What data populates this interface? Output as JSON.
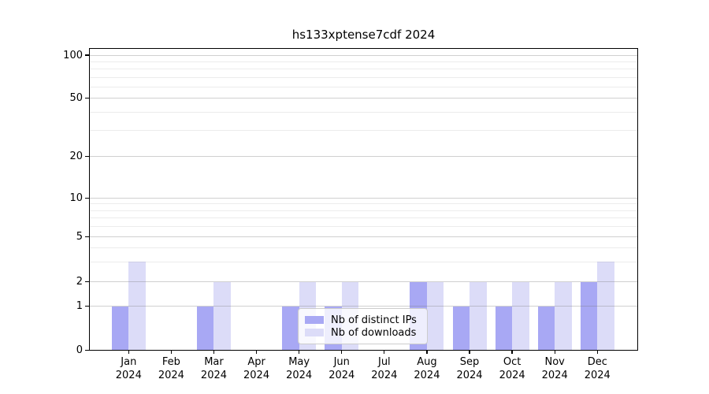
{
  "chart_data": {
    "type": "bar",
    "title": "hs133xptense7cdf 2024",
    "categories": [
      "Jan",
      "Feb",
      "Mar",
      "Apr",
      "May",
      "Jun",
      "Jul",
      "Aug",
      "Sep",
      "Oct",
      "Nov",
      "Dec"
    ],
    "xtick_year": "2024",
    "series": [
      {
        "name": "Nb of distinct IPs",
        "color": "#a8a8f4",
        "values": [
          1,
          0,
          1,
          0,
          1,
          1,
          0,
          2,
          1,
          1,
          1,
          2
        ]
      },
      {
        "name": "Nb of downloads",
        "color": "#dcdcf8",
        "values": [
          3,
          0,
          2,
          0,
          2,
          2,
          0,
          2,
          2,
          2,
          2,
          3
        ]
      }
    ],
    "ytick_labels": [
      100,
      50,
      20,
      10,
      5,
      2,
      1,
      0
    ],
    "minor_yticks": [
      3,
      4,
      6,
      7,
      8,
      9,
      30,
      40,
      60,
      70,
      80,
      90
    ],
    "ylim": [
      0,
      112
    ],
    "yscale": "log-above-1-linear-below-1",
    "grid": true,
    "grid_over_bars": true,
    "legend_position": "lower-center",
    "colors": {
      "axis": "#000000",
      "grid_major": "rgba(120,120,120,0.35)",
      "grid_minor": "rgba(120,120,120,0.14)",
      "background": "#ffffff",
      "legend_border": "#cccccc"
    }
  }
}
